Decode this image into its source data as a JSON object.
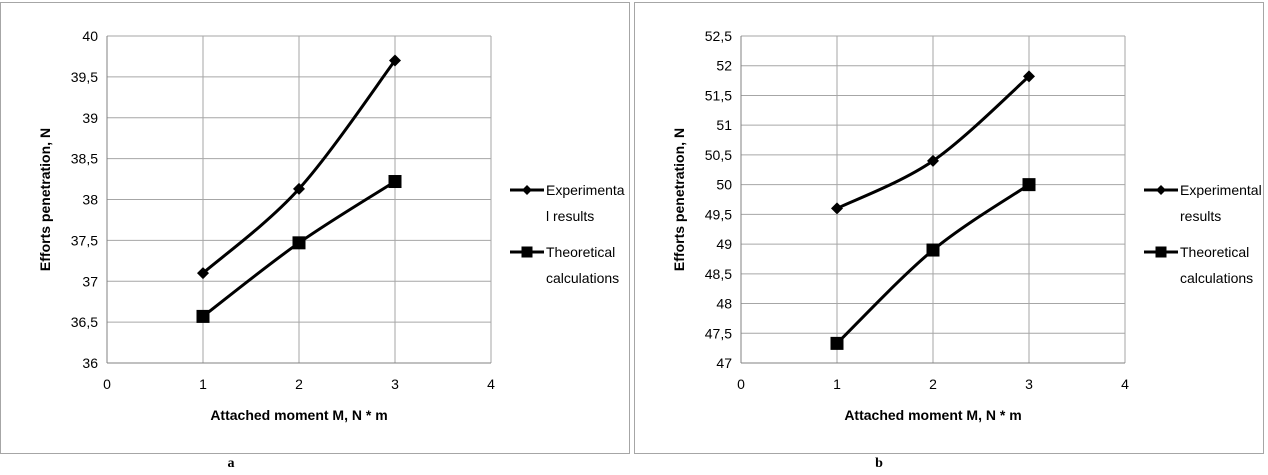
{
  "chart_data": [
    {
      "type": "line",
      "panel": "a",
      "title": "",
      "xlabel": "Attached moment M, N * m",
      "ylabel": "Efforts penetration, N",
      "xlim": [
        0,
        4
      ],
      "ylim": [
        36,
        40
      ],
      "xticks": [
        "0",
        "1",
        "2",
        "3",
        "4"
      ],
      "yticks": [
        "36",
        "36,5",
        "37",
        "37,5",
        "38",
        "38,5",
        "39",
        "39,5",
        "40"
      ],
      "grid": true,
      "legend_position": "right",
      "x": [
        1,
        2,
        3
      ],
      "series": [
        {
          "name": "Experimental results",
          "legend_lines": [
            "Experimenta",
            "l results"
          ],
          "marker": "diamond",
          "color": "#000000",
          "values": [
            37.1,
            38.13,
            39.7
          ]
        },
        {
          "name": "Theoretical calculations",
          "legend_lines": [
            "Theoretical",
            "calculations"
          ],
          "marker": "square",
          "color": "#000000",
          "values": [
            36.57,
            37.47,
            38.22
          ]
        }
      ]
    },
    {
      "type": "line",
      "panel": "b",
      "title": "",
      "xlabel": "Attached moment M, N * m",
      "ylabel": "Efforts penetration, N",
      "xlim": [
        0,
        4
      ],
      "ylim": [
        47,
        52.5
      ],
      "xticks": [
        "0",
        "1",
        "2",
        "3",
        "4"
      ],
      "yticks": [
        "47",
        "47,5",
        "48",
        "48,5",
        "49",
        "49,5",
        "50",
        "50,5",
        "51",
        "51,5",
        "52",
        "52,5"
      ],
      "grid": true,
      "legend_position": "right",
      "x": [
        1,
        2,
        3
      ],
      "series": [
        {
          "name": "Experimental results",
          "legend_lines": [
            "Experimental",
            "results"
          ],
          "marker": "diamond",
          "color": "#000000",
          "values": [
            49.6,
            50.4,
            51.82
          ]
        },
        {
          "name": "Theoretical calculations",
          "legend_lines": [
            "Theoretical",
            "calculations"
          ],
          "marker": "square",
          "color": "#000000",
          "values": [
            47.33,
            48.9,
            50.0
          ]
        }
      ]
    }
  ],
  "captions": {
    "a": "a",
    "b": "b"
  }
}
